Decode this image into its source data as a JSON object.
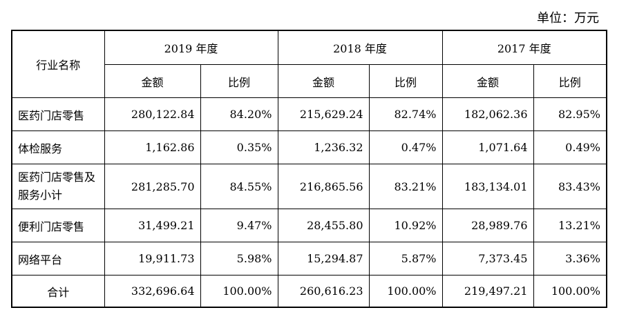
{
  "unit_label": "单位：万元",
  "header": {
    "industry_label": "行业名称",
    "years": [
      "2019 年度",
      "2018 年度",
      "2017 年度"
    ],
    "amount_label": "金额",
    "ratio_label": "比例"
  },
  "rows": [
    {
      "name": "医药门店零售",
      "v2019": "280,122.84",
      "p2019": "84.20%",
      "v2018": "215,629.24",
      "p2018": "82.74%",
      "v2017": "182,062.36",
      "p2017": "82.95%"
    },
    {
      "name": "体检服务",
      "v2019": "1,162.86",
      "p2019": "0.35%",
      "v2018": "1,236.32",
      "p2018": "0.47%",
      "v2017": "1,071.64",
      "p2017": "0.49%"
    },
    {
      "name": "医药门店零售及服务小计",
      "v2019": "281,285.70",
      "p2019": "84.55%",
      "v2018": "216,865.56",
      "p2018": "83.21%",
      "v2017": "183,134.01",
      "p2017": "83.43%"
    },
    {
      "name": "便利门店零售",
      "v2019": "31,499.21",
      "p2019": "9.47%",
      "v2018": "28,455.80",
      "p2018": "10.92%",
      "v2017": "28,989.76",
      "p2017": "13.21%"
    },
    {
      "name": "网络平台",
      "v2019": "19,911.73",
      "p2019": "5.98%",
      "v2018": "15,294.87",
      "p2018": "5.87%",
      "v2017": "7,373.45",
      "p2017": "3.36%"
    },
    {
      "name": "合计",
      "v2019": "332,696.64",
      "p2019": "100.00%",
      "v2018": "260,616.23",
      "p2018": "100.00%",
      "v2017": "219,497.21",
      "p2017": "100.00%"
    }
  ]
}
